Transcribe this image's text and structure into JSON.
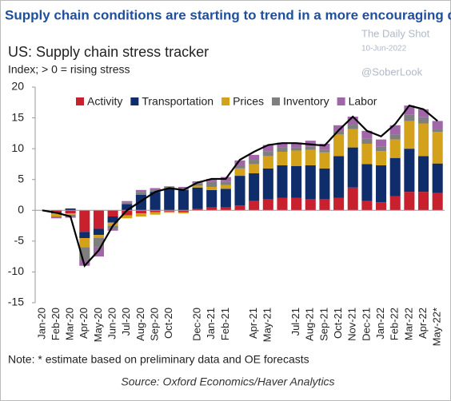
{
  "header": "Supply chain conditions are starting to trend in a more encouraging direction",
  "watermark": {
    "brand": "The Daily Shot",
    "date": "10-Jun-2022",
    "handle": "@SoberLook"
  },
  "note": "Note: * estimate based on preliminary data and OE forecasts",
  "source": "Source: Oxford Economics/Haver Analytics",
  "chart_data": {
    "type": "bar",
    "stacked": true,
    "title": "US: Supply chain stress tracker",
    "subtitle": "Index; > 0 = rising stress",
    "categories": [
      "Jan-20",
      "Feb-20",
      "Mar-20",
      "Apr-20",
      "May-20",
      "Jun-20",
      "Jul-20",
      "Aug-20",
      "Sep-20",
      "Oct-20",
      null,
      "Dec-20",
      "Jan-21",
      "Feb-21",
      null,
      "Apr-21",
      "May-21",
      null,
      "Jul-21",
      "Aug-21",
      "Sep-21",
      "Oct-21",
      "Nov-21",
      "Dec-21",
      "Jan-22",
      "Feb-22",
      "Mar-22",
      "Apr-22",
      "May-22*"
    ],
    "series": [
      {
        "name": "Activity",
        "color": "#c8202f",
        "values": [
          0,
          -0.3,
          -0.5,
          -3.5,
          -3,
          -1,
          -0.8,
          -0.5,
          -0.3,
          -0.2,
          -0.3,
          0.2,
          0.5,
          0.5,
          0.8,
          1.5,
          1.8,
          2,
          2,
          1.8,
          1.8,
          2,
          3.7,
          1.5,
          1.3,
          2.3,
          3,
          3,
          2.8
        ]
      },
      {
        "name": "Transportation",
        "color": "#0f2d6b",
        "values": [
          0,
          -0.2,
          0.3,
          -1,
          -1,
          -1,
          1,
          2.5,
          3,
          3.5,
          3.3,
          3.5,
          2.8,
          3,
          4.8,
          4.5,
          5,
          5.3,
          5.2,
          5.5,
          5,
          6.8,
          6.5,
          6,
          6,
          6.2,
          7,
          5.8,
          4.8
        ]
      },
      {
        "name": "Prices",
        "color": "#d4a21a",
        "values": [
          0,
          -0.5,
          -0.2,
          -1.5,
          -0.5,
          -0.5,
          -0.5,
          -0.5,
          -0.4,
          -0.2,
          -0.2,
          0.3,
          0.5,
          0.6,
          1.2,
          1.5,
          2,
          2.2,
          2.5,
          2.5,
          2.6,
          3.5,
          3,
          3.3,
          2.3,
          3,
          4.5,
          5.3,
          5.1
        ]
      },
      {
        "name": "Inventory",
        "color": "#7f7f7f",
        "values": [
          0,
          0,
          -0.3,
          -2,
          -1.5,
          -0.5,
          0.3,
          0.5,
          0.4,
          0.3,
          0.3,
          0.4,
          0.8,
          0.5,
          0.5,
          0.7,
          0.8,
          0.7,
          0.5,
          0.5,
          0.4,
          0.5,
          0.7,
          0.8,
          0.7,
          0.8,
          1,
          1,
          0.5
        ]
      },
      {
        "name": "Labor",
        "color": "#a066a8",
        "values": [
          0,
          -0.3,
          -0.2,
          -1,
          -1.5,
          -0.3,
          0.2,
          0.3,
          0.2,
          0.1,
          0.2,
          0.3,
          0.5,
          0.8,
          0.8,
          0.8,
          1,
          0.8,
          0.8,
          1,
          1,
          1,
          1.3,
          1.3,
          1.2,
          1.5,
          1.5,
          1.3,
          1.3
        ]
      }
    ],
    "line": {
      "color": "#000000",
      "values": [
        0,
        -0.4,
        -1,
        -9,
        -6.5,
        -2.5,
        0,
        1.5,
        3,
        3.6,
        3.3,
        4.5,
        5.1,
        5.1,
        8.2,
        9.5,
        10.6,
        10.9,
        10.9,
        10.7,
        10.5,
        13,
        15.2,
        12.9,
        12,
        14,
        17,
        16.4,
        14.5
      ]
    },
    "ylim": [
      -15,
      20
    ],
    "yticks": [
      -15,
      -10,
      -5,
      0,
      5,
      10,
      15,
      20
    ],
    "grid": false,
    "legend": "top"
  }
}
